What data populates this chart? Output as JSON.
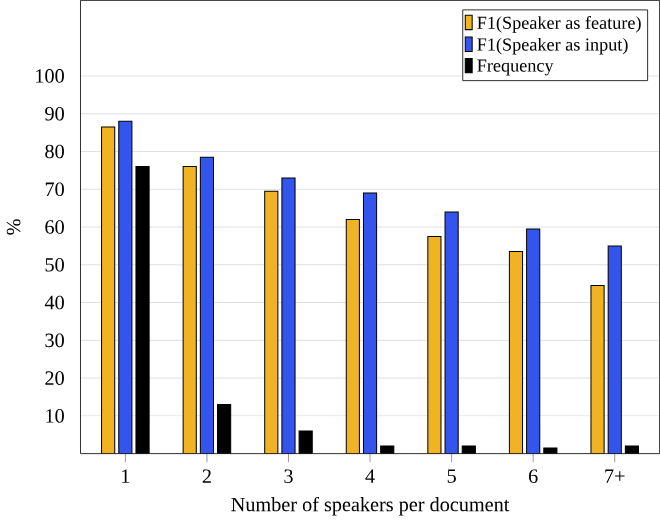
{
  "chart_data": {
    "type": "bar",
    "xlabel": "Number of speakers per document",
    "ylabel": "%",
    "categories": [
      "1",
      "2",
      "3",
      "4",
      "5",
      "6",
      "7+"
    ],
    "series": [
      {
        "name": "F1(Speaker as feature)",
        "color": "#f0b323",
        "values": [
          86.5,
          76,
          69.5,
          62,
          57.5,
          53.5,
          44.5
        ]
      },
      {
        "name": "F1(Speaker as input)",
        "color": "#3355ee",
        "values": [
          88,
          78.5,
          73,
          69,
          64,
          59.5,
          55
        ]
      },
      {
        "name": "Frequency",
        "color": "#000000",
        "values": [
          76,
          13,
          6,
          2,
          2,
          1.5,
          2
        ]
      }
    ],
    "ylim": [
      0,
      120
    ],
    "yticks": [
      10,
      20,
      30,
      40,
      50,
      60,
      70,
      80,
      90,
      100
    ],
    "grid": "y",
    "legend": "top right"
  }
}
